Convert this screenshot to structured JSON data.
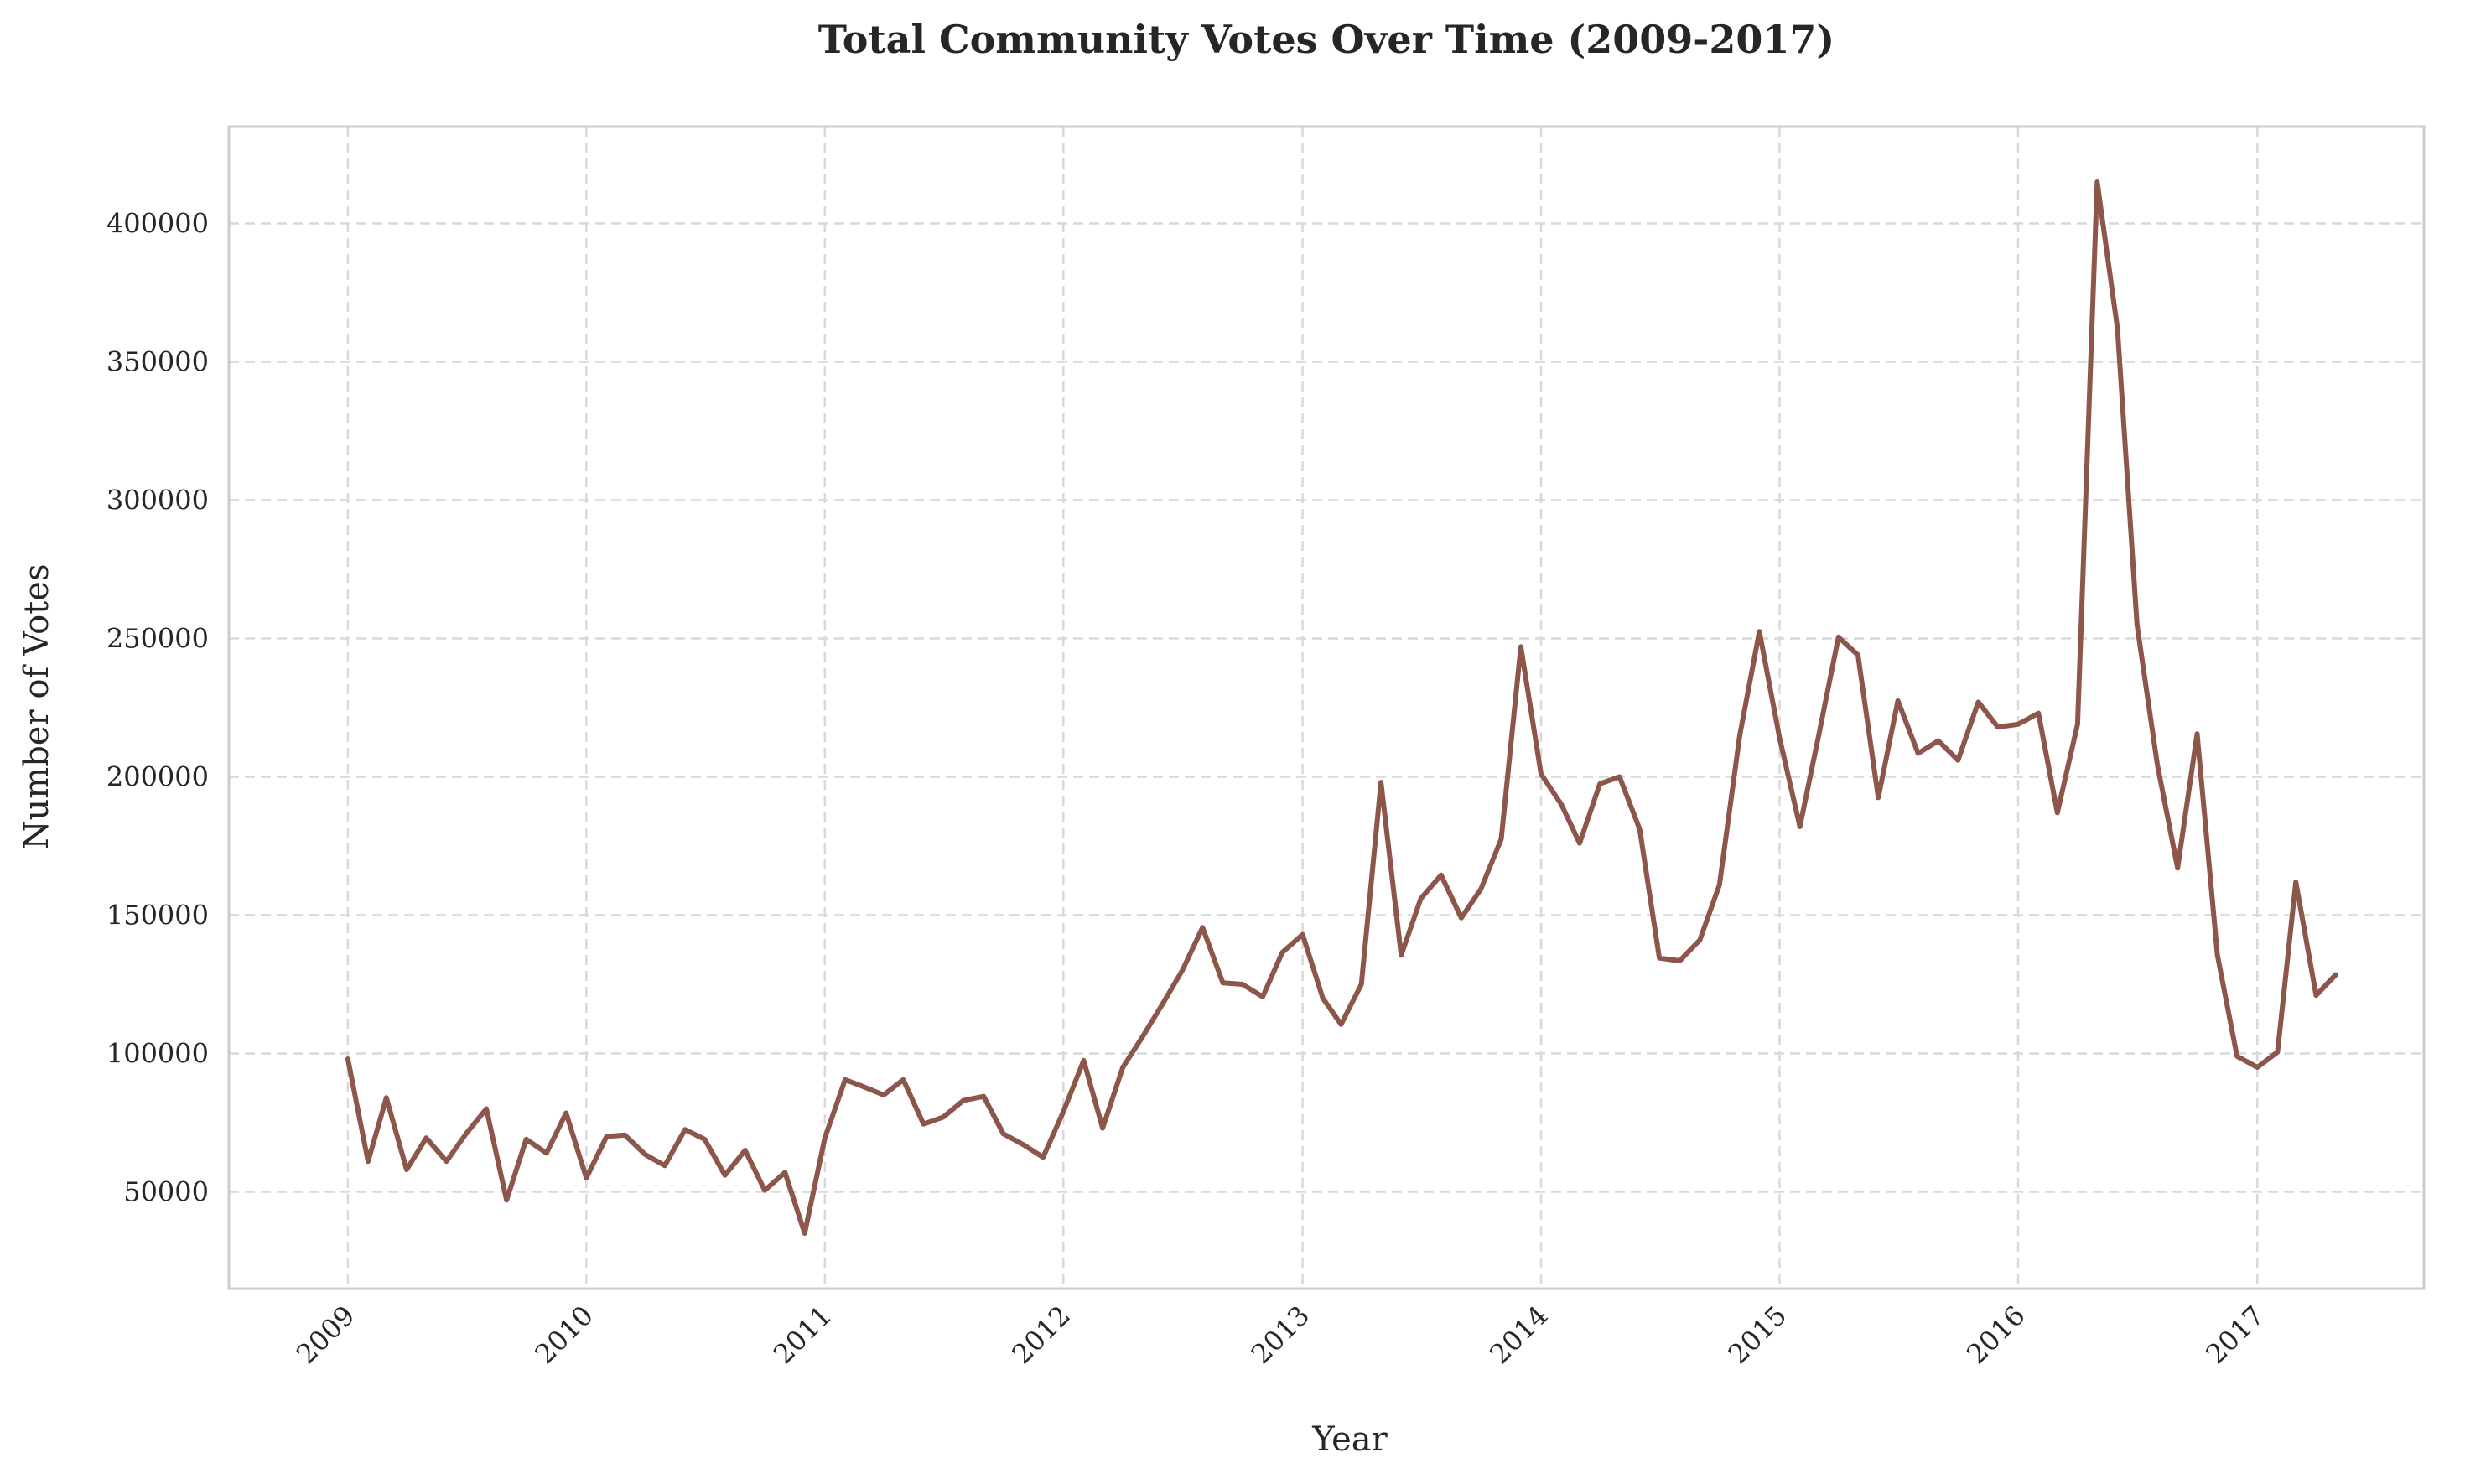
{
  "chart_data": {
    "type": "line",
    "title": "Total Community Votes Over Time (2009-2017)",
    "xlabel": "Year",
    "ylabel": "Number of Votes",
    "x_tick_labels": [
      "2009",
      "2010",
      "2011",
      "2012",
      "2013",
      "2014",
      "2015",
      "2016",
      "2017"
    ],
    "y_tick_labels": [
      "50000",
      "100000",
      "150000",
      "200000",
      "250000",
      "300000",
      "350000",
      "400000"
    ],
    "y_ticks": [
      50000,
      100000,
      150000,
      200000,
      250000,
      300000,
      350000,
      400000
    ],
    "ylim": [
      15000,
      435000
    ],
    "xlim": [
      "2008-07-03",
      "2017-09-13"
    ],
    "grid": true,
    "line_color": "#8c564b",
    "series": [
      {
        "x": [
          "2009-01",
          "2009-02",
          "2009-03",
          "2009-04",
          "2009-05",
          "2009-06",
          "2009-07",
          "2009-08",
          "2009-09",
          "2009-10",
          "2009-11",
          "2009-12",
          "2010-01",
          "2010-02",
          "2010-03",
          "2010-04",
          "2010-05",
          "2010-06",
          "2010-07",
          "2010-08",
          "2010-09",
          "2010-10",
          "2010-11",
          "2010-12",
          "2011-01",
          "2011-02",
          "2011-03",
          "2011-04",
          "2011-05",
          "2011-06",
          "2011-07",
          "2011-08",
          "2011-09",
          "2011-10",
          "2011-11",
          "2011-12",
          "2012-01",
          "2012-02",
          "2012-03",
          "2012-04",
          "2012-05",
          "2012-06",
          "2012-07",
          "2012-08",
          "2012-09",
          "2012-10",
          "2012-11",
          "2012-12",
          "2013-01",
          "2013-02",
          "2013-03",
          "2013-04",
          "2013-05",
          "2013-06",
          "2013-07",
          "2013-08",
          "2013-09",
          "2013-10",
          "2013-11",
          "2013-12",
          "2014-01",
          "2014-02",
          "2014-03",
          "2014-04",
          "2014-05",
          "2014-06",
          "2014-07",
          "2014-08",
          "2014-09",
          "2014-10",
          "2014-11",
          "2014-12",
          "2015-01",
          "2015-02",
          "2015-03",
          "2015-04",
          "2015-05",
          "2015-06",
          "2015-07",
          "2015-08",
          "2015-09",
          "2015-10",
          "2015-11",
          "2015-12",
          "2016-01",
          "2016-02",
          "2016-03",
          "2016-04",
          "2016-05",
          "2016-06",
          "2016-07",
          "2016-08",
          "2016-09",
          "2016-10",
          "2016-11",
          "2016-12",
          "2017-01",
          "2017-02",
          "2017-03",
          "2017-04",
          "2017-05"
        ],
        "y": [
          98000,
          61000,
          84000,
          58000,
          69500,
          61000,
          71000,
          80000,
          47000,
          69000,
          64000,
          78500,
          55000,
          70000,
          70500,
          63500,
          59500,
          72500,
          69000,
          56000,
          65000,
          50500,
          57000,
          35000,
          69500,
          90500,
          88000,
          85000,
          90500,
          74500,
          77000,
          83000,
          84500,
          71000,
          67000,
          62500,
          79000,
          97500,
          73000,
          95000,
          106000,
          118000,
          130000,
          145500,
          125500,
          125000,
          120500,
          136500,
          143000,
          120000,
          110500,
          125000,
          198000,
          135500,
          156000,
          164500,
          149000,
          159500,
          177500,
          247000,
          201000,
          190000,
          176000,
          197500,
          200000,
          181000,
          134500,
          133500,
          141000,
          161000,
          215000,
          252500,
          214000,
          182000,
          214000,
          250500,
          244000,
          192500,
          227500,
          208500,
          213000,
          206000,
          227000,
          218000,
          219000,
          223000,
          187000,
          219000,
          415000,
          362000,
          255000,
          204500,
          167000,
          215500,
          135500,
          99000,
          95000,
          100500,
          162000,
          121000,
          128500
        ]
      }
    ]
  }
}
